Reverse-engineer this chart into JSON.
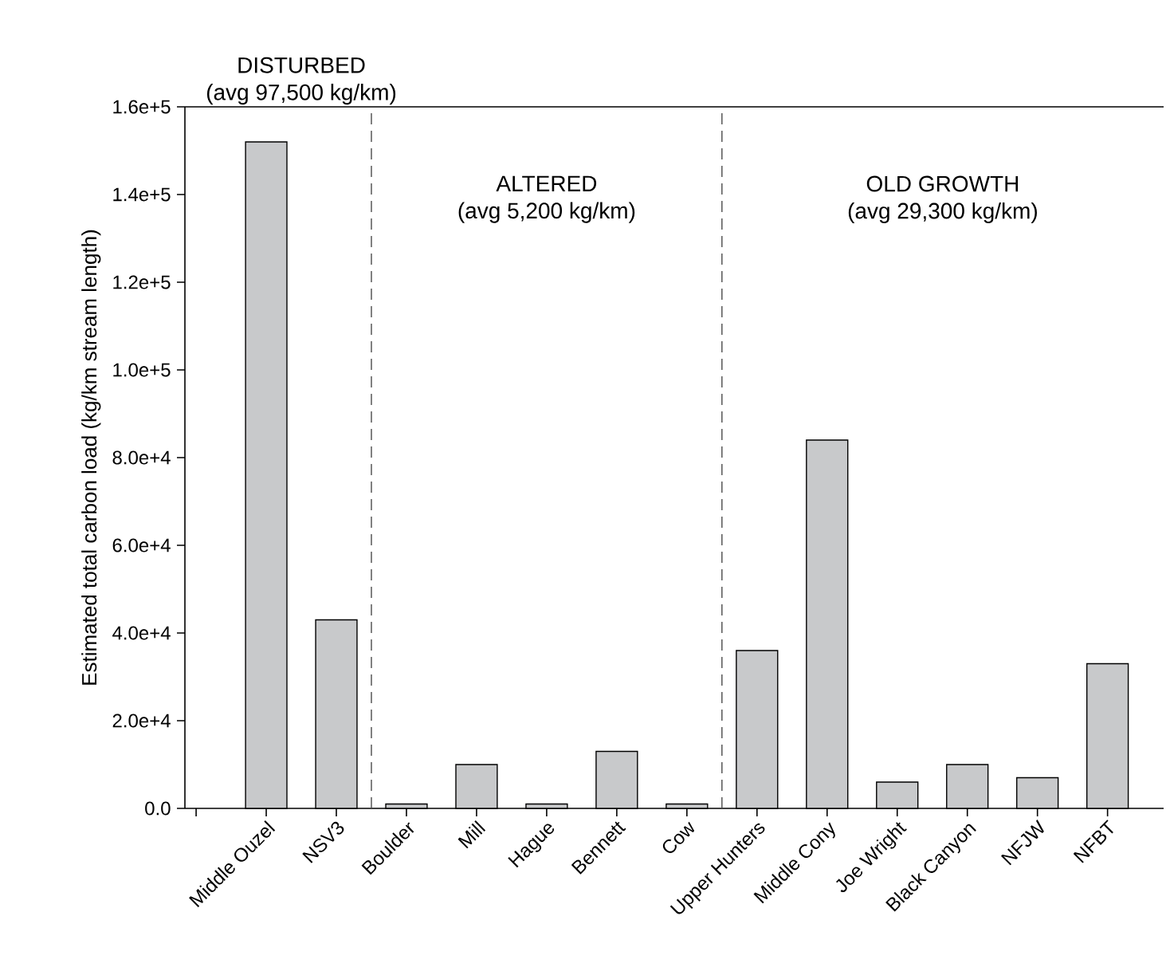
{
  "chart_data": {
    "type": "bar",
    "ylabel": "Estimated total carbon load (kg/km stream length)",
    "categories": [
      null,
      "Middle Ouzel",
      "NSV3",
      "Boulder",
      "Mill",
      "Hague",
      "Bennett",
      "Cow",
      "Upper Hunters",
      "Middle Cony",
      "Joe Wright",
      "Black Canyon",
      "NFJW",
      "NFBT"
    ],
    "values": [
      null,
      152000,
      43000,
      1000,
      10000,
      1000,
      13000,
      1000,
      36000,
      84000,
      6000,
      10000,
      7000,
      33000
    ],
    "color": "#c8c9cb",
    "ylim": [
      0,
      160000
    ],
    "yticks": [
      {
        "value": 0,
        "label": "0.0"
      },
      {
        "value": 20000,
        "label": "2.0e+4"
      },
      {
        "value": 40000,
        "label": "4.0e+4"
      },
      {
        "value": 60000,
        "label": "6.0e+4"
      },
      {
        "value": 80000,
        "label": "8.0e+4"
      },
      {
        "value": 100000,
        "label": "1.0e+5"
      },
      {
        "value": 120000,
        "label": "1.2e+5"
      },
      {
        "value": 140000,
        "label": "1.4e+5"
      },
      {
        "value": 160000,
        "label": "1.6e+5"
      }
    ],
    "annotations": [
      "DISTURBED",
      "(avg 97,500 kg/km)",
      "ALTERED",
      "(avg 5,200 kg/km)",
      "OLD GROWTH",
      "(avg 29,300 kg/km)"
    ],
    "grid": false
  }
}
